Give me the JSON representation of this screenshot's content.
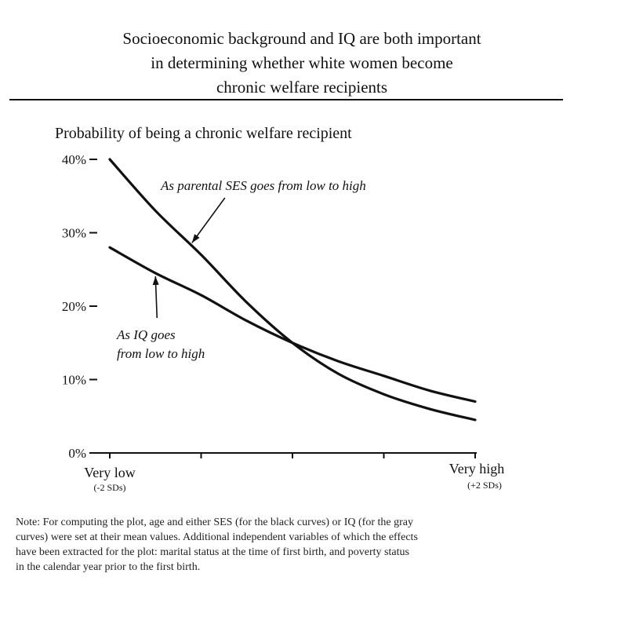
{
  "figure": {
    "title_lines": [
      "Socioeconomic background and IQ are both important",
      "in determining whether white women become",
      "chronic welfare recipients"
    ],
    "note_lines": [
      "Note: For computing the plot, age and either SES (for the black curves) or IQ (for the gray",
      "curves) were set at their mean values. Additional independent variables of which the effects",
      "have been extracted for the plot: marital status at the time of first birth, and poverty status",
      "in the calendar year prior to the first birth."
    ]
  },
  "chart_data": {
    "type": "line",
    "ylabel": "Probability of being a chronic welfare recipient",
    "ylim": [
      0,
      40
    ],
    "y_ticks": [
      {
        "value": 0,
        "label": "0%"
      },
      {
        "value": 10,
        "label": "10%"
      },
      {
        "value": 20,
        "label": "20%"
      },
      {
        "value": 30,
        "label": "30%"
      },
      {
        "value": 40,
        "label": "40%"
      }
    ],
    "xlim": [
      -2,
      2
    ],
    "x_ticks": [
      -2,
      -1,
      0,
      1,
      2
    ],
    "x_endpoint_labels": {
      "low": "Very low",
      "low_sub": "(-2 SDs)",
      "high": "Very high",
      "high_sub": "(+2 SDs)"
    },
    "grid": false,
    "series": [
      {
        "name": "As parental SES goes from low to high",
        "x": [
          -2,
          -1.5,
          -1,
          -0.5,
          0,
          0.5,
          1,
          1.5,
          2
        ],
        "values": [
          40,
          33,
          27,
          20.5,
          15,
          10.8,
          8,
          6,
          4.5
        ]
      },
      {
        "name": "As IQ goes from low to high",
        "x": [
          -2,
          -1.5,
          -1,
          -0.5,
          0,
          0.5,
          1,
          1.5,
          2
        ],
        "values": [
          28,
          24.5,
          21.5,
          18,
          15,
          12.5,
          10.5,
          8.5,
          7
        ]
      }
    ],
    "annotations": [
      {
        "series": 0,
        "lines": [
          "As parental SES goes from low to high"
        ],
        "at_x": -1.1
      },
      {
        "series": 1,
        "lines": [
          "As IQ goes",
          "from low to high"
        ],
        "at_x": -1.5
      }
    ]
  }
}
